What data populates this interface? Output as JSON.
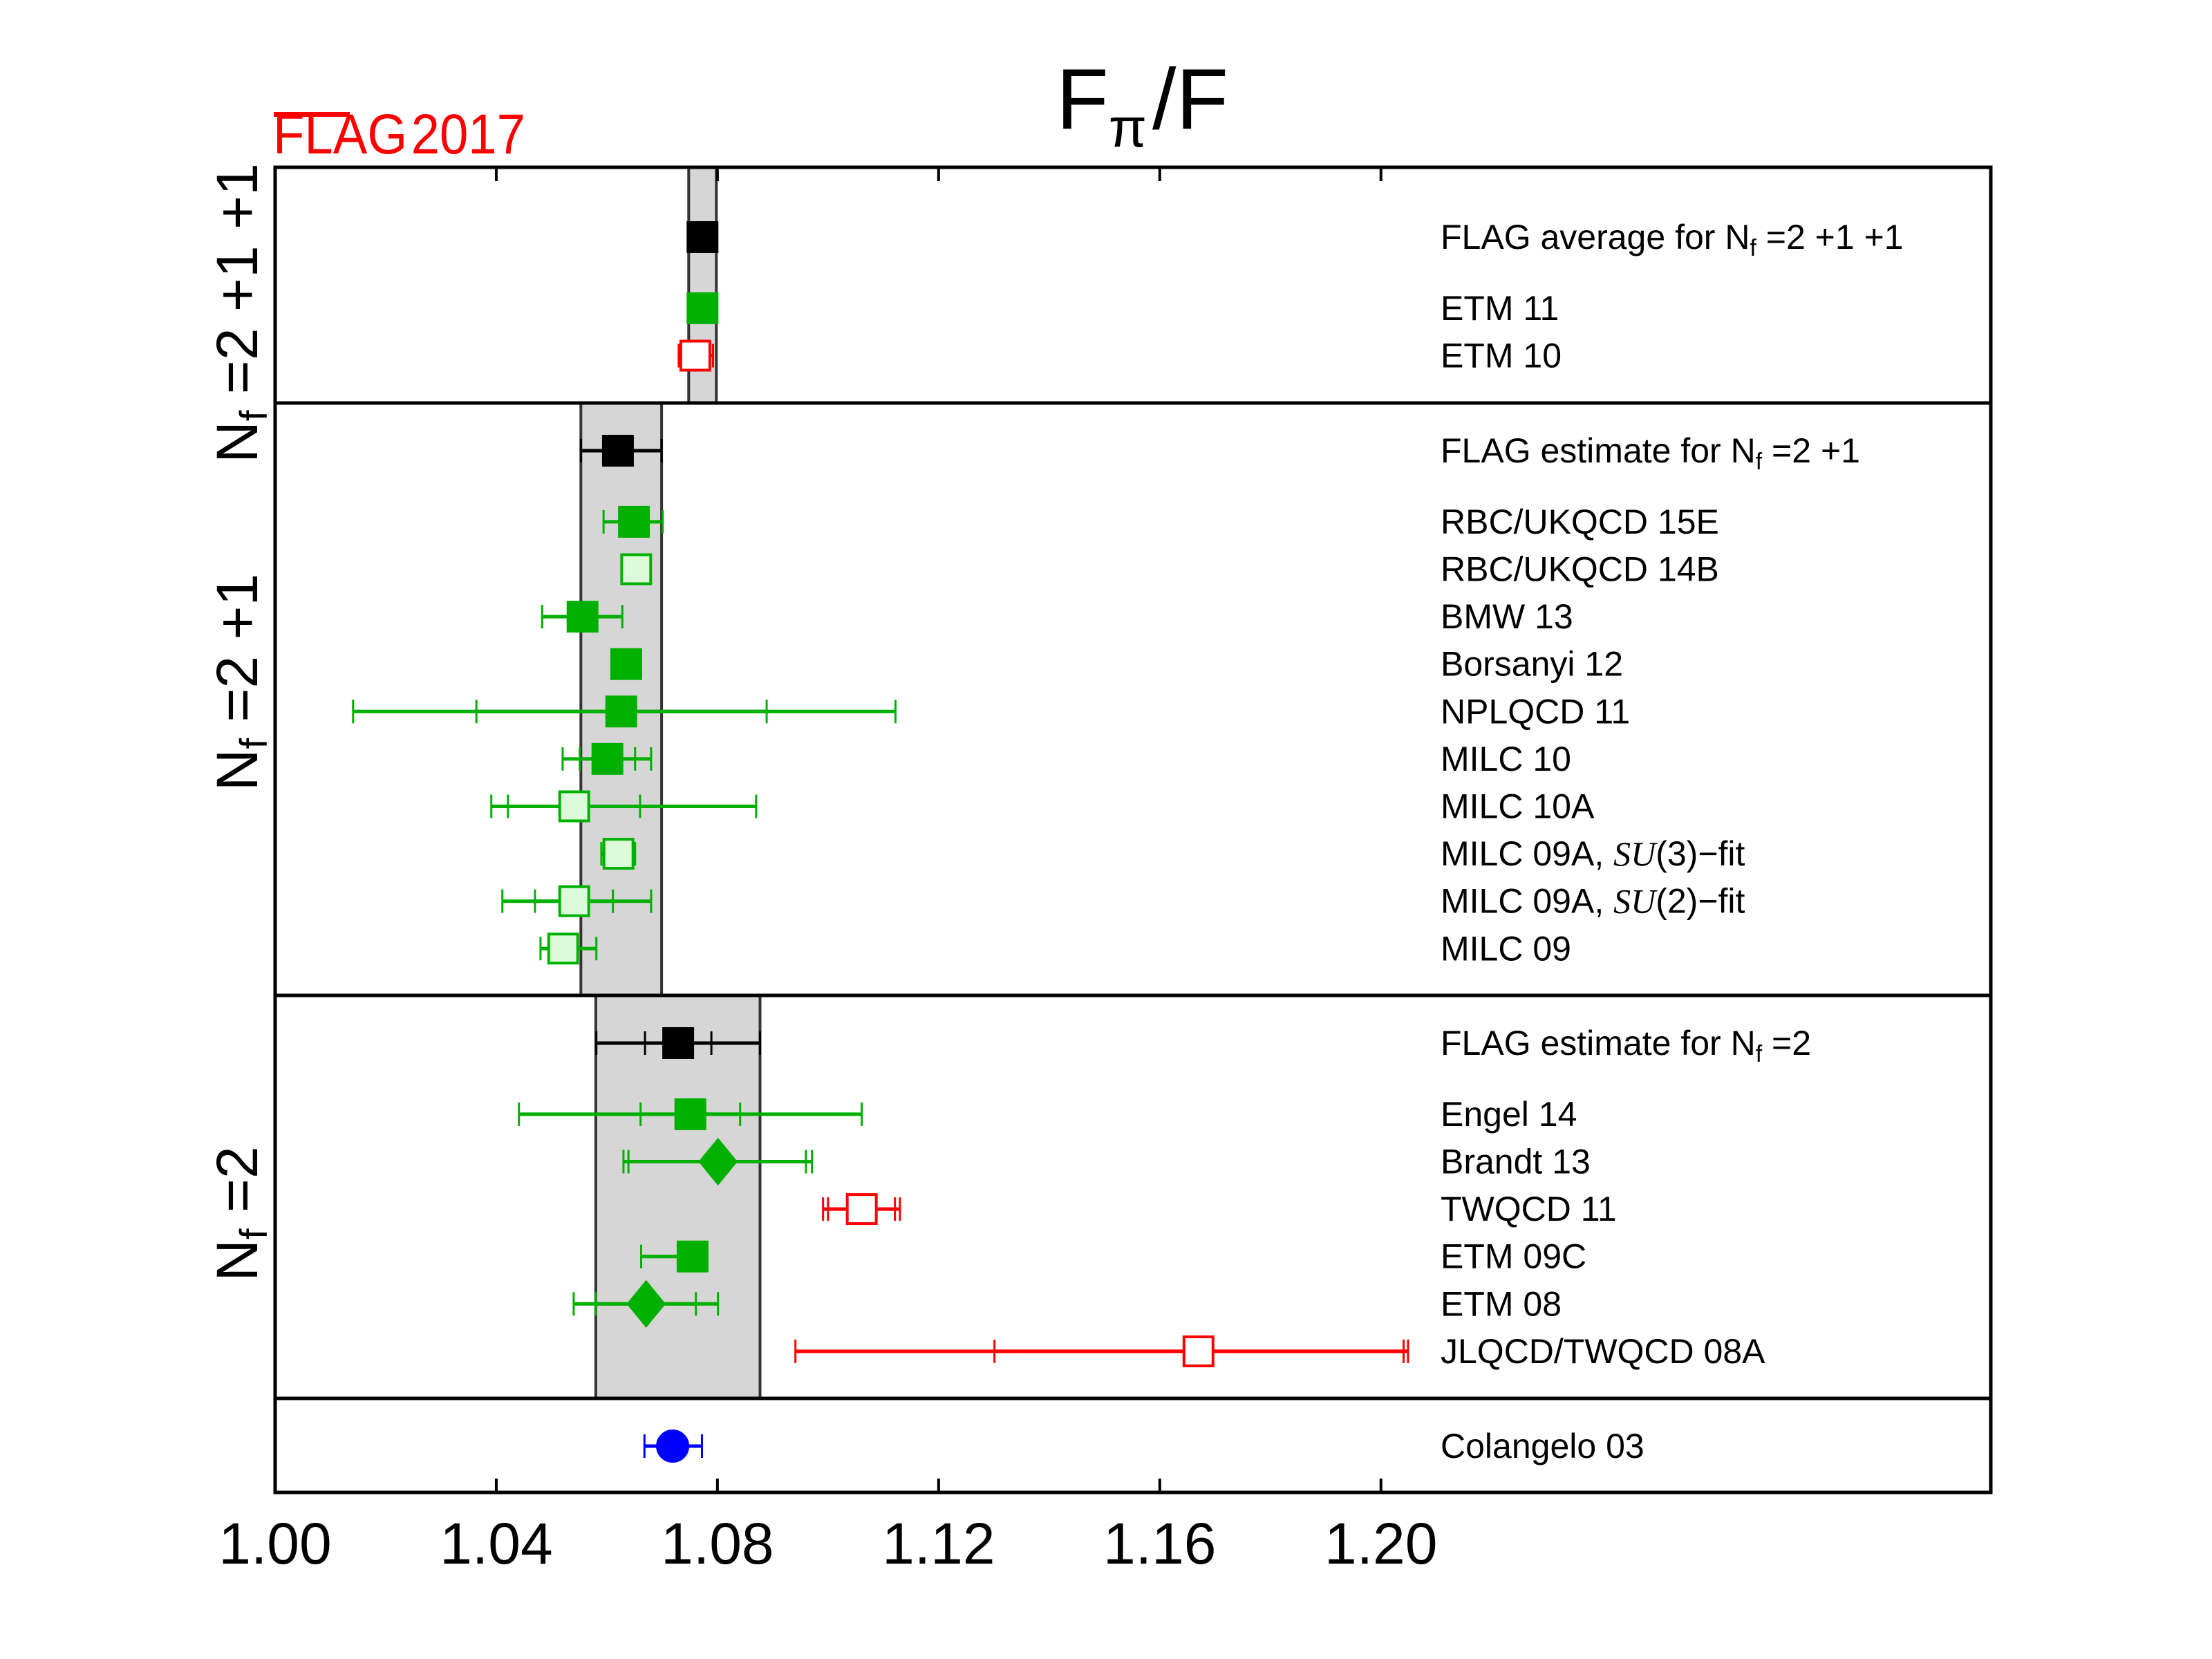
{
  "chart_data": {
    "type": "scatter",
    "title": "Fπ/F",
    "title_parts": {
      "main": "F",
      "sub": "π",
      "rest": "/F"
    },
    "logo": {
      "text": "FLAG",
      "year": "2017",
      "color": "#ff0000"
    },
    "xlabel": "",
    "xlim": [
      1.0,
      1.3103
    ],
    "xticks": [
      1.0,
      1.04,
      1.08,
      1.12,
      1.16,
      1.2
    ],
    "xtick_labels": [
      "1.00",
      "1.04",
      "1.08",
      "1.12",
      "1.16",
      "1.20"
    ],
    "grid": false,
    "colors": {
      "flag": "#000000",
      "green": "#00b000",
      "green_light_fill": "#dbfbdb",
      "red": "#ff0000",
      "blue": "#0000ff",
      "band_fill": "#d6d6d6",
      "band_edge": "#333333"
    },
    "panels": [
      {
        "id": "nf211",
        "label": {
          "main": "N",
          "sub": "f",
          "rest": " =2 +1 +1"
        },
        "band": [
          1.0748,
          1.0798
        ],
        "rows": [
          {
            "label": "FLAG average for ",
            "label_nf": "N",
            "label_sub": "f",
            "label_rest": " =2 +1 +1",
            "value": 1.0773,
            "stat": null,
            "total": null,
            "marker": "square",
            "fill": "flag",
            "edge": "flag",
            "slot": 0
          },
          {
            "label": "ETM 11",
            "value": 1.0773,
            "stat": null,
            "total": null,
            "marker": "square",
            "fill": "green",
            "edge": "green",
            "slot": 1.5
          },
          {
            "label": "ETM 10",
            "value": 1.076,
            "stat": [
              1.073,
              1.0792
            ],
            "total": null,
            "marker": "square",
            "fill": "white",
            "edge": "red",
            "slot": 2.5
          }
        ]
      },
      {
        "id": "nf21",
        "label": {
          "main": "N",
          "sub": "f",
          "rest": " =2 +1"
        },
        "band": [
          1.0553,
          1.0699
        ],
        "rows": [
          {
            "label": "FLAG estimate for ",
            "label_nf": "N",
            "label_sub": "f",
            "label_rest": " =2 +1",
            "value": 1.062,
            "stat": null,
            "total": [
              1.0553,
              1.0699
            ],
            "marker": "square",
            "fill": "flag",
            "edge": "flag",
            "slot": 0
          },
          {
            "label": "RBC/UKQCD 15E",
            "value": 1.0649,
            "stat": null,
            "total": [
              1.0594,
              1.0701
            ],
            "marker": "square",
            "fill": "green",
            "edge": "green",
            "slot": 1.5
          },
          {
            "label": "RBC/UKQCD 14B",
            "value": 1.0653,
            "stat": null,
            "total": null,
            "marker": "square",
            "fill": "green_light_fill",
            "edge": "green",
            "slot": 2.5
          },
          {
            "label": "BMW 13",
            "value": 1.0556,
            "stat": null,
            "total": [
              1.0483,
              1.0628
            ],
            "marker": "square",
            "fill": "green",
            "edge": "green",
            "slot": 3.5
          },
          {
            "label": "Borsanyi 12",
            "value": 1.0635,
            "stat": null,
            "total": null,
            "marker": "square",
            "fill": "green",
            "edge": "green",
            "slot": 4.5
          },
          {
            "label": "NPLQCD 11",
            "value": 1.0626,
            "stat": [
              1.0364,
              1.0889
            ],
            "total": [
              1.0141,
              1.1122
            ],
            "marker": "square",
            "fill": "green",
            "edge": "green",
            "slot": 5.5
          },
          {
            "label": "MILC 10",
            "value": 1.0601,
            "stat": [
              1.0551,
              1.0651
            ],
            "total": [
              1.052,
              1.068
            ],
            "marker": "square",
            "fill": "green",
            "edge": "green",
            "slot": 6.5
          },
          {
            "label": "MILC 10A",
            "value": 1.0541,
            "stat": [
              1.0421,
              1.066
            ],
            "total": [
              1.0391,
              1.087
            ],
            "marker": "square",
            "fill": "green_light_fill",
            "edge": "green",
            "slot": 7.5
          },
          {
            "label": "MILC 09A, ",
            "label_it": "SU",
            "label_rest": "(3)−fit",
            "value": 1.0621,
            "stat": null,
            "total": [
              1.059,
              1.0651
            ],
            "marker": "square",
            "fill": "green_light_fill",
            "edge": "green",
            "slot": 8.5
          },
          {
            "label": "MILC 09A, ",
            "label_it": "SU",
            "label_rest": "(2)−fit",
            "value": 1.0541,
            "stat": [
              1.047,
              1.0611
            ],
            "total": [
              1.0411,
              1.068
            ],
            "marker": "square",
            "fill": "green_light_fill",
            "edge": "green",
            "slot": 9.5
          },
          {
            "label": "MILC 09",
            "value": 1.0521,
            "stat": null,
            "total": [
              1.048,
              1.0581
            ],
            "marker": "square",
            "fill": "green_light_fill",
            "edge": "green",
            "slot": 10.5
          }
        ]
      },
      {
        "id": "nf2",
        "label": {
          "main": "N",
          "sub": "f",
          "rest": " =2"
        },
        "band": [
          1.058,
          1.0877
        ],
        "rows": [
          {
            "label": "FLAG estimate for ",
            "label_nf": "N",
            "label_sub": "f",
            "label_rest": " =2",
            "value": 1.0729,
            "stat": [
              1.0669,
              1.0789
            ],
            "total": [
              1.0581,
              1.0877
            ],
            "marker": "square",
            "fill": "flag",
            "edge": "flag",
            "slot": 0
          },
          {
            "label": "Engel 14",
            "value": 1.0751,
            "stat": [
              1.0661,
              1.0841
            ],
            "total": [
              1.0441,
              1.1061
            ],
            "marker": "square",
            "fill": "green",
            "edge": "green",
            "slot": 1.5
          },
          {
            "label": "Brandt 13",
            "value": 1.0801,
            "stat": [
              1.0639,
              1.096
            ],
            "total": [
              1.063,
              1.0971
            ],
            "marker": "diamond",
            "fill": "green",
            "edge": "green",
            "slot": 2.5
          },
          {
            "label": "TWQCD 11",
            "value": 1.1061,
            "stat": [
              1.1,
              1.1121
            ],
            "total": [
              1.0991,
              1.113
            ],
            "marker": "square",
            "fill": "white",
            "edge": "red",
            "slot": 3.5
          },
          {
            "label": "ETM 09C",
            "value": 1.0755,
            "stat": null,
            "total": [
              1.0662,
              1.077
            ],
            "marker": "square",
            "fill": "green",
            "edge": "green",
            "slot": 4.5
          },
          {
            "label": "ETM 08",
            "value": 1.0671,
            "stat": [
              1.058,
              1.0761
            ],
            "total": [
              1.054,
              1.0801
            ],
            "marker": "diamond",
            "fill": "green",
            "edge": "green",
            "slot": 5.5
          },
          {
            "label": "JLQCD/TWQCD 08A",
            "value": 1.167,
            "stat": [
              1.1301,
              1.2041
            ],
            "total": [
              1.0941,
              1.2049
            ],
            "marker": "square",
            "fill": "white",
            "edge": "red",
            "slot": 6.5
          }
        ]
      },
      {
        "id": "pheno",
        "label": null,
        "band": null,
        "rows": [
          {
            "label": "Colangelo 03",
            "value": 1.0719,
            "stat": null,
            "total": [
              1.0668,
              1.0772
            ],
            "marker": "circle",
            "fill": "blue",
            "edge": "blue",
            "slot": 0
          }
        ]
      }
    ]
  }
}
